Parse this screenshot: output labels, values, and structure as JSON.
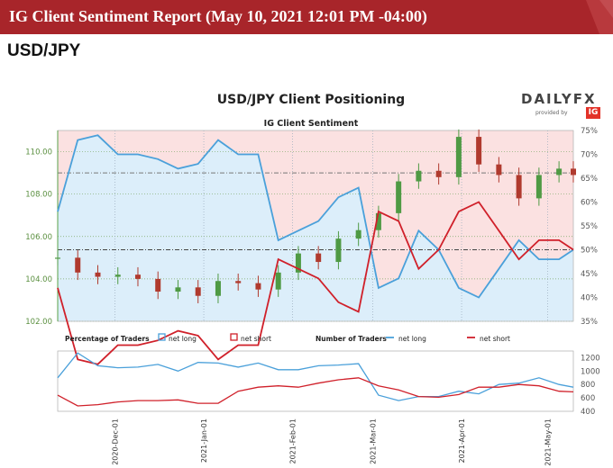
{
  "header": {
    "banner_title": "IG Client Sentiment Report (May 10, 2021 12:01 PM -04:00)",
    "pair": "USD/JPY"
  },
  "branding": {
    "name": "DAILYFX",
    "provided_by": "provided by",
    "logo_text": "IG"
  },
  "colors": {
    "banner": "#a8252a",
    "price_line": "#58a24a",
    "candle_up": "#4f9a44",
    "candle_down": "#b03a2e",
    "net_long": "#4aa0da",
    "net_short": "#d0202a",
    "long_fill": "#dceefa",
    "short_fill": "#fbe1e1",
    "axis_text": "#5a8f3f"
  },
  "chart_data": [
    {
      "type": "line",
      "title": "USD/JPY Client Positioning",
      "subtitle": "IG Client Sentiment",
      "x": [
        "2020-11-11",
        "2020-11-18",
        "2020-11-25",
        "2020-12-02",
        "2020-12-09",
        "2020-12-16",
        "2020-12-23",
        "2020-12-30",
        "2021-01-06",
        "2021-01-13",
        "2021-01-20",
        "2021-01-27",
        "2021-02-03",
        "2021-02-10",
        "2021-02-17",
        "2021-02-24",
        "2021-03-03",
        "2021-03-10",
        "2021-03-17",
        "2021-03-24",
        "2021-03-31",
        "2021-04-07",
        "2021-04-14",
        "2021-04-21",
        "2021-04-28",
        "2021-05-05",
        "2021-05-10"
      ],
      "x_tick_labels": [
        "2020-Dec-01",
        "2021-Jan-01",
        "2021-Feb-01",
        "2021-Mar-01",
        "2021-Apr-01",
        "2021-May-01"
      ],
      "x_tick_dates": [
        "2020-12-01",
        "2021-01-01",
        "2021-02-01",
        "2021-03-01",
        "2021-04-01",
        "2021-05-01"
      ],
      "price_axis": {
        "ylim": [
          102.0,
          111.0
        ],
        "ticks": [
          102,
          104,
          106,
          108,
          110
        ],
        "tick_labels": [
          "102.00",
          "104.00",
          "106.00",
          "108.00",
          "110.00"
        ]
      },
      "sentiment_axis": {
        "ylim": [
          35,
          75
        ],
        "ticks": [
          35,
          40,
          45,
          50,
          55,
          60,
          65,
          70,
          75
        ],
        "tick_labels": [
          "35%",
          "40%",
          "45%",
          "50%",
          "55%",
          "60%",
          "65%",
          "70%",
          "75%"
        ]
      },
      "reference_levels": {
        "price": 109.0,
        "sentiment": 50
      },
      "series": [
        {
          "name": "net long",
          "values": [
            58,
            73,
            74,
            70,
            70,
            69,
            67,
            68,
            73,
            70,
            70,
            52,
            54,
            56,
            61,
            63,
            42,
            44,
            54,
            50,
            42,
            40,
            46,
            52,
            48,
            48,
            50
          ]
        },
        {
          "name": "net short",
          "values": [
            42,
            27,
            26,
            30,
            30,
            31,
            33,
            32,
            27,
            30,
            30,
            48,
            46,
            44,
            39,
            37,
            58,
            56,
            46,
            50,
            58,
            60,
            54,
            48,
            52,
            52,
            50
          ]
        }
      ],
      "price": [
        105.0,
        104.3,
        104.1,
        104.2,
        104.0,
        103.4,
        103.6,
        103.2,
        103.9,
        103.8,
        103.5,
        104.3,
        105.2,
        104.8,
        105.9,
        106.3,
        107.1,
        108.6,
        109.1,
        108.8,
        110.7,
        109.4,
        108.9,
        107.8,
        108.9,
        109.2,
        108.9
      ]
    },
    {
      "type": "line",
      "legend_title_left": "Percentage of Traders",
      "legend_title_right": "Number of Traders",
      "legend": [
        {
          "name": "net long",
          "style": "box",
          "color": "#4aa0da"
        },
        {
          "name": "net short",
          "style": "box",
          "color": "#d0202a"
        },
        {
          "name": "net long",
          "style": "line",
          "color": "#4aa0da"
        },
        {
          "name": "net short",
          "style": "line",
          "color": "#d0202a"
        }
      ],
      "ylim": [
        400,
        1300
      ],
      "ticks": [
        400,
        600,
        800,
        1000,
        1200
      ],
      "tick_labels": [
        "400",
        "600",
        "800",
        "1000",
        "1200"
      ],
      "series": [
        {
          "name": "net long",
          "values": [
            900,
            1270,
            1080,
            1050,
            1060,
            1100,
            1000,
            1130,
            1120,
            1060,
            1120,
            1020,
            1020,
            1080,
            1090,
            1110,
            640,
            560,
            620,
            620,
            700,
            660,
            800,
            820,
            900,
            800,
            760
          ]
        },
        {
          "name": "net short",
          "values": [
            640,
            480,
            500,
            540,
            560,
            560,
            570,
            520,
            520,
            700,
            760,
            780,
            760,
            820,
            870,
            900,
            780,
            720,
            620,
            610,
            650,
            760,
            760,
            800,
            780,
            700,
            690
          ]
        }
      ]
    }
  ]
}
